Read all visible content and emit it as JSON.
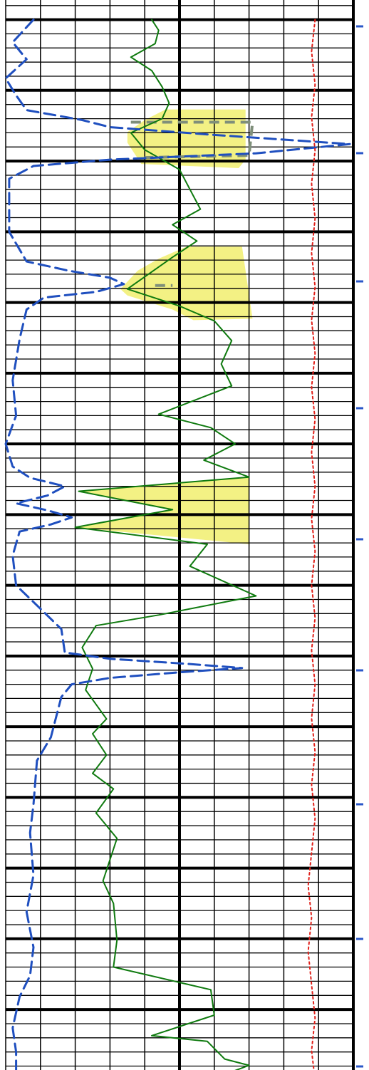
{
  "chart_data": {
    "type": "line",
    "title": "",
    "xlabel": "",
    "ylabel": "",
    "orientation": "vertical-depth-track",
    "grid": true,
    "legend": "none",
    "tick_labels": [],
    "depth_range": [
      0,
      1495
    ],
    "x_range": [
      0,
      10
    ],
    "grid_cells": 10,
    "major_depth_step": 100,
    "minor_depth_step": 20,
    "colors": {
      "grid": "#000000",
      "gamma_ray": "#0f7a0f",
      "resistivity": "#1f4fbf",
      "caliper": "#e0201a",
      "fill": "#f2f07a",
      "dash_overlay": "#7f8f7a",
      "depth_tick": "#2a57c8"
    },
    "depth_ticks": [
      37,
      215,
      395,
      573,
      757,
      941,
      1129,
      1318,
      1497
    ],
    "series": [
      {
        "name": "",
        "key": "gamma_ray",
        "style": "solid",
        "width": 2,
        "points": [
          [
            4.2,
            0
          ],
          [
            4.4,
            15
          ],
          [
            4.3,
            34
          ],
          [
            3.6,
            53
          ],
          [
            4.2,
            72
          ],
          [
            4.5,
            95
          ],
          [
            4.7,
            118
          ],
          [
            4.5,
            140
          ],
          [
            3.6,
            160
          ],
          [
            4.0,
            184
          ],
          [
            5.0,
            212
          ],
          [
            5.3,
            240
          ],
          [
            5.6,
            268
          ],
          [
            4.8,
            290
          ],
          [
            5.5,
            313
          ],
          [
            4.8,
            336
          ],
          [
            3.5,
            381
          ],
          [
            5.0,
            405
          ],
          [
            6.0,
            426
          ],
          [
            6.5,
            454
          ],
          [
            6.2,
            487
          ],
          [
            6.5,
            518
          ],
          [
            4.4,
            558
          ],
          [
            5.9,
            577
          ],
          [
            6.6,
            600
          ],
          [
            5.7,
            623
          ],
          [
            7.0,
            647
          ],
          [
            2.1,
            667
          ],
          [
            4.8,
            693
          ],
          [
            2.0,
            718
          ],
          [
            5.8,
            742
          ],
          [
            5.3,
            773
          ],
          [
            7.2,
            815
          ],
          [
            4.4,
            842
          ],
          [
            2.6,
            857
          ],
          [
            2.2,
            888
          ],
          [
            2.5,
            918
          ],
          [
            2.3,
            948
          ],
          [
            2.9,
            989
          ],
          [
            2.5,
            1010
          ],
          [
            2.9,
            1040
          ],
          [
            2.5,
            1066
          ],
          [
            3.1,
            1088
          ],
          [
            2.6,
            1122
          ],
          [
            3.2,
            1158
          ],
          [
            2.8,
            1218
          ],
          [
            3.1,
            1250
          ],
          [
            3.2,
            1302
          ],
          [
            3.1,
            1340
          ],
          [
            5.9,
            1372
          ],
          [
            6.0,
            1408
          ],
          [
            4.2,
            1437
          ],
          [
            5.8,
            1445
          ],
          [
            6.3,
            1470
          ],
          [
            7.0,
            1479
          ],
          [
            6.4,
            1490
          ],
          [
            6.5,
            1500
          ]
        ]
      },
      {
        "name": "",
        "key": "resistivity",
        "style": "dash",
        "width": 3,
        "points": [
          [
            0.8,
            0
          ],
          [
            0.2,
            32
          ],
          [
            0.6,
            56
          ],
          [
            0.0,
            83
          ],
          [
            0.3,
            107
          ],
          [
            0.6,
            128
          ],
          [
            2.2,
            142
          ],
          [
            3.0,
            152
          ],
          [
            6.0,
            163
          ],
          [
            9.9,
            176
          ],
          [
            7.2,
            189
          ],
          [
            3.0,
            198
          ],
          [
            0.8,
            207
          ],
          [
            0.1,
            225
          ],
          [
            0.1,
            300
          ],
          [
            0.6,
            342
          ],
          [
            1.8,
            355
          ],
          [
            3.0,
            365
          ],
          [
            3.4,
            374
          ],
          [
            2.6,
            385
          ],
          [
            1.1,
            393
          ],
          [
            0.6,
            410
          ],
          [
            0.4,
            452
          ],
          [
            0.2,
            510
          ],
          [
            0.3,
            560
          ],
          [
            0.0,
            600
          ],
          [
            0.2,
            632
          ],
          [
            0.7,
            648
          ],
          [
            1.7,
            660
          ],
          [
            1.2,
            673
          ],
          [
            0.3,
            684
          ],
          [
            1.2,
            694
          ],
          [
            1.9,
            704
          ],
          [
            1.3,
            714
          ],
          [
            0.4,
            724
          ],
          [
            0.2,
            758
          ],
          [
            0.3,
            800
          ],
          [
            1.1,
            838
          ],
          [
            1.6,
            862
          ],
          [
            1.7,
            895
          ],
          [
            3.0,
            904
          ],
          [
            5.2,
            911
          ],
          [
            6.8,
            917
          ],
          [
            5.0,
            923
          ],
          [
            3.0,
            931
          ],
          [
            1.9,
            940
          ],
          [
            1.6,
            958
          ],
          [
            1.3,
            1015
          ],
          [
            0.9,
            1048
          ],
          [
            0.8,
            1110
          ],
          [
            0.7,
            1150
          ],
          [
            0.8,
            1210
          ],
          [
            0.6,
            1262
          ],
          [
            0.8,
            1312
          ],
          [
            0.7,
            1352
          ],
          [
            0.4,
            1382
          ],
          [
            0.2,
            1426
          ],
          [
            0.3,
            1460
          ],
          [
            0.3,
            1500
          ]
        ]
      },
      {
        "name": "",
        "key": "caliper",
        "style": "dot",
        "width": 2,
        "points": [
          [
            8.9,
            0
          ],
          [
            8.8,
            45
          ],
          [
            8.9,
            92
          ],
          [
            8.8,
            138
          ],
          [
            8.9,
            185
          ],
          [
            8.8,
            232
          ],
          [
            8.9,
            281
          ],
          [
            8.8,
            330
          ],
          [
            8.9,
            378
          ],
          [
            8.8,
            425
          ],
          [
            8.9,
            472
          ],
          [
            8.8,
            520
          ],
          [
            8.9,
            565
          ],
          [
            8.8,
            612
          ],
          [
            8.9,
            660
          ],
          [
            8.8,
            706
          ],
          [
            8.9,
            752
          ],
          [
            8.8,
            800
          ],
          [
            8.9,
            846
          ],
          [
            8.8,
            892
          ],
          [
            8.9,
            940
          ],
          [
            8.8,
            988
          ],
          [
            8.9,
            1036
          ],
          [
            8.8,
            1082
          ],
          [
            8.9,
            1130
          ],
          [
            8.8,
            1178
          ],
          [
            8.7,
            1225
          ],
          [
            8.8,
            1270
          ],
          [
            8.7,
            1318
          ],
          [
            8.8,
            1365
          ],
          [
            8.9,
            1412
          ],
          [
            8.8,
            1458
          ],
          [
            8.9,
            1500
          ]
        ]
      }
    ],
    "dash_overlays": [
      {
        "points": [
          [
            3.6,
            145
          ],
          [
            7.1,
            145
          ],
          [
            7.0,
            192
          ],
          [
            4.0,
            195
          ]
        ]
      },
      {
        "points": [
          [
            4.3,
            376
          ],
          [
            4.8,
            376
          ]
        ]
      }
    ],
    "shaded_intervals": [
      {
        "top": 127,
        "bottom": 210,
        "polygon": [
          [
            3.5,
            159
          ],
          [
            4.0,
            142
          ],
          [
            4.6,
            127
          ],
          [
            6.9,
            127
          ],
          [
            6.9,
            198
          ],
          [
            6.7,
            210
          ],
          [
            3.9,
            204
          ],
          [
            3.5,
            174
          ]
        ]
      },
      {
        "top": 321,
        "bottom": 425,
        "polygon": [
          [
            3.3,
            381
          ],
          [
            3.8,
            355
          ],
          [
            4.4,
            338
          ],
          [
            5.2,
            321
          ],
          [
            6.8,
            321
          ],
          [
            7.1,
            423
          ],
          [
            5.4,
            425
          ],
          [
            4.8,
            410
          ],
          [
            3.5,
            390
          ]
        ]
      },
      {
        "top": 647,
        "bottom": 742,
        "polygon": [
          [
            7.0,
            647
          ],
          [
            2.2,
            667
          ],
          [
            4.8,
            693
          ],
          [
            2.0,
            718
          ],
          [
            7.0,
            742
          ]
        ]
      }
    ]
  }
}
